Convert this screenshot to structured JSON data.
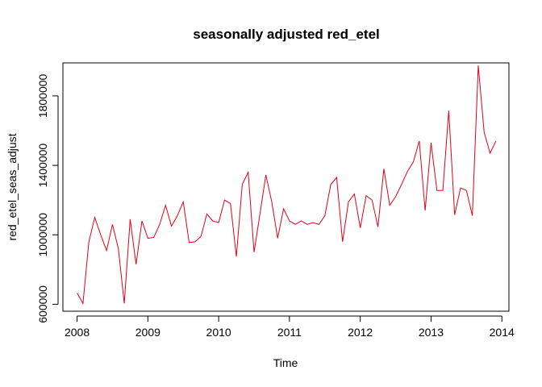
{
  "chart_data": {
    "type": "line",
    "title": "seasonally adjusted red_etel",
    "xlabel": "Time",
    "ylabel": "red_etel_seas_adjust",
    "xlim": [
      2007.8,
      2014.1
    ],
    "ylim": [
      560000,
      1990000
    ],
    "x_ticks": [
      2008,
      2009,
      2010,
      2011,
      2012,
      2013,
      2014
    ],
    "x_tick_labels": [
      "2008",
      "2009",
      "2010",
      "2011",
      "2012",
      "2013",
      "2014"
    ],
    "y_ticks": [
      600000,
      1000000,
      1400000,
      1800000
    ],
    "y_tick_labels": [
      "600000",
      "1000000",
      "1400000",
      "1800000"
    ],
    "grid": false,
    "legend": "none",
    "series": [
      {
        "color": "#e0001a",
        "x_start": 2008.0,
        "x_step": 0.0833333,
        "values": [
          665000,
          605000,
          960000,
          1100000,
          1000000,
          910000,
          1060000,
          920000,
          605000,
          1090000,
          830000,
          1080000,
          980000,
          985000,
          1060000,
          1170000,
          1050000,
          1110000,
          1190000,
          955000,
          960000,
          990000,
          1120000,
          1080000,
          1070000,
          1200000,
          1180000,
          875000,
          1290000,
          1360000,
          900000,
          1120000,
          1345000,
          1190000,
          980000,
          1150000,
          1080000,
          1060000,
          1080000,
          1060000,
          1070000,
          1060000,
          1110000,
          1290000,
          1330000,
          960000,
          1190000,
          1235000,
          1040000,
          1225000,
          1200000,
          1045000,
          1380000,
          1170000,
          1220000,
          1290000,
          1365000,
          1420000,
          1540000,
          1140000,
          1530000,
          1255000,
          1255000,
          1715000,
          1115000,
          1270000,
          1255000,
          1110000,
          1975000,
          1590000,
          1470000,
          1540000
        ]
      }
    ]
  }
}
